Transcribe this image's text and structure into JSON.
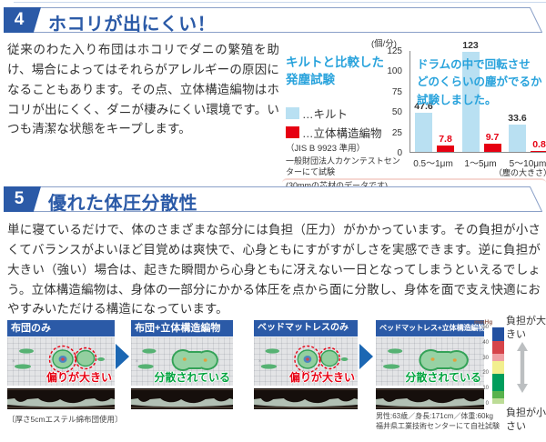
{
  "section4": {
    "number": "4",
    "title": "ホコリが出にくい！",
    "body": "従来のわた入り布団はホコリでダニの繁殖を助け、場合によってはそれらがアレルギーの原因になることもあります。その点、立体構造編物はホコリが出にくく、ダニが棲みにくい環境です。いつも清潔な状態をキープします。"
  },
  "chart": {
    "heading_line1": "キルトと比較した",
    "heading_line2": "発塵試験",
    "legend": [
      {
        "label": "…キルト",
        "color": "#b9e0f2"
      },
      {
        "label": "…立体構造編物",
        "color": "#e60012"
      }
    ],
    "notes": [
      "（JIS B 9923 準用）",
      "一般財団法人カケンテストセンターにて試験",
      "(30mmの芯材のデータです)"
    ],
    "unit": "(個/分)",
    "annotation": [
      "ドラムの中で回転させ",
      "どのくらいの塵がでるか",
      "試験しました。"
    ],
    "x_note": "（塵の大きさ）"
  },
  "chart_data": {
    "type": "bar",
    "title": "キルトと比較した発塵試験",
    "categories": [
      "0.5～1μm",
      "1～5μm",
      "5～10μm"
    ],
    "series": [
      {
        "name": "キルト",
        "color": "#b9e0f2",
        "values": [
          47.6,
          123,
          33.6
        ]
      },
      {
        "name": "立体構造編物",
        "color": "#e60012",
        "values": [
          7.8,
          9.7,
          0.8
        ]
      }
    ],
    "ylabel": "(個/分)",
    "xlabel": "(塵の大きさ)",
    "ylim": [
      0,
      125
    ],
    "yticks": [
      0,
      25,
      50,
      75,
      100,
      125
    ],
    "grid": false,
    "legend_position": "left"
  },
  "section5": {
    "number": "5",
    "title": "優れた体圧分散性",
    "body": "単に寝ているだけで、体のさまざまな部分には負担（圧力）がかかっています。その負担が小さくてバランスがよいほど目覚めは爽快で、心身ともにすがすがしさを実感できます。逆に負担が大きい（強い）場合は、起きた瞬間から心身ともに冴えない一日となってしまうといえるでしょう。立体構造編物は、身体の一部分にかかる体圧を点から面に分散し、身体を面で支え快適におやすみいただける構造になっています。"
  },
  "panels": [
    {
      "title": "布団のみ",
      "verdict": "偏りが大きい",
      "verdict_type": "biased"
    },
    {
      "title": "布団+立体構造編物",
      "verdict": "分散されている",
      "verdict_type": "dispersed"
    },
    {
      "title": "ベッドマットレスのみ",
      "verdict": "偏りが大きい",
      "verdict_type": "biased"
    },
    {
      "title": "ベッドマットレス+立体構造編物",
      "verdict": "分散されている",
      "verdict_type": "dispersed"
    }
  ],
  "captions": {
    "left": "〔厚さ5cmエステル綿布団使用〕",
    "right_line1": "男性:63歳／身長:171cm／体重:60kg",
    "right_line2": "福井県工業技術センターにて自社試験"
  },
  "scale": {
    "unit": "mmHg",
    "ticks": [
      "50",
      "40",
      "30",
      "20",
      "10",
      "0"
    ],
    "segments": [
      {
        "color": "#2350a0",
        "h": 15
      },
      {
        "color": "#d6444a",
        "h": 14
      },
      {
        "color": "#efa0a4",
        "h": 8
      },
      {
        "color": "#f2ef8e",
        "h": 14
      },
      {
        "color": "#009d5c",
        "h": 19
      },
      {
        "color": "#58b24c",
        "h": 8
      },
      {
        "color": "#bcdc96",
        "h": 6
      }
    ],
    "label_top": "負担が大きい",
    "label_bottom": "負担が小さい"
  },
  "colors": {
    "accent_blue": "#2b5aa7",
    "cyan": "#29a3dc",
    "bar_blue": "#b9e0f2",
    "bar_red": "#e60012",
    "verdict_red": "#e60012",
    "verdict_green": "#00a33e",
    "flow_arrow_blue": "#1c67b3"
  }
}
